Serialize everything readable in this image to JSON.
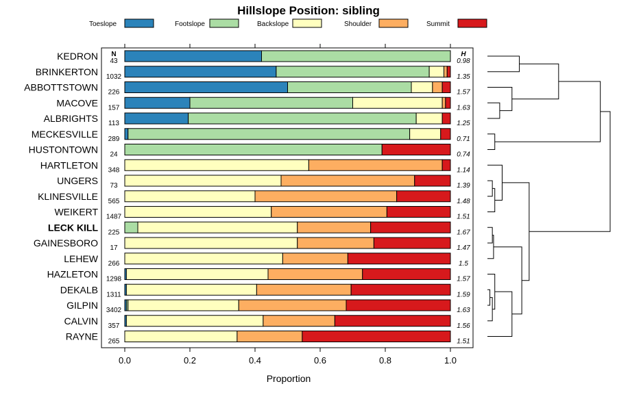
{
  "chart_data": {
    "type": "bar",
    "orientation": "horizontal",
    "stacked": true,
    "title": "Hillslope Position: sibling",
    "xlabel": "Proportion",
    "ylabel": "",
    "xlim": [
      0,
      1
    ],
    "xticks": [
      "0.0",
      "0.2",
      "0.4",
      "0.6",
      "0.8",
      "1.0"
    ],
    "legend_position": "top",
    "n_header": "N",
    "h_header": "H",
    "highlight": "LECK KILL",
    "series": [
      {
        "name": "Toeslope",
        "color": "#2b83ba"
      },
      {
        "name": "Footslope",
        "color": "#abdda4"
      },
      {
        "name": "Backslope",
        "color": "#ffffbf"
      },
      {
        "name": "Shoulder",
        "color": "#fdae61"
      },
      {
        "name": "Summit",
        "color": "#d7191c"
      }
    ],
    "rows": [
      {
        "name": "KEDRON",
        "n": "43",
        "h": "0.98",
        "values": [
          0.42,
          0.58,
          0.0,
          0.0,
          0.0
        ]
      },
      {
        "name": "BRINKERTON",
        "n": "1032",
        "h": "1.35",
        "values": [
          0.465,
          0.47,
          0.045,
          0.01,
          0.01
        ]
      },
      {
        "name": "ABBOTTSTOWN",
        "n": "226",
        "h": "1.57",
        "values": [
          0.5,
          0.38,
          0.065,
          0.03,
          0.025
        ]
      },
      {
        "name": "MACOVE",
        "n": "157",
        "h": "1.63",
        "values": [
          0.2,
          0.5,
          0.275,
          0.01,
          0.015
        ]
      },
      {
        "name": "ALBRIGHTS",
        "n": "113",
        "h": "1.25",
        "values": [
          0.195,
          0.7,
          0.08,
          0.0,
          0.025
        ]
      },
      {
        "name": "MECKESVILLE",
        "n": "289",
        "h": "0.71",
        "values": [
          0.01,
          0.865,
          0.095,
          0.0,
          0.03
        ]
      },
      {
        "name": "HUSTONTOWN",
        "n": "24",
        "h": "0.74",
        "values": [
          0.0,
          0.79,
          0.0,
          0.0,
          0.21
        ]
      },
      {
        "name": "HARTLETON",
        "n": "348",
        "h": "1.14",
        "values": [
          0.0,
          0.0,
          0.565,
          0.41,
          0.025
        ]
      },
      {
        "name": "UNGERS",
        "n": "73",
        "h": "1.39",
        "values": [
          0.0,
          0.0,
          0.48,
          0.41,
          0.11
        ]
      },
      {
        "name": "KLINESVILLE",
        "n": "565",
        "h": "1.48",
        "values": [
          0.0,
          0.0,
          0.4,
          0.435,
          0.165
        ]
      },
      {
        "name": "WEIKERT",
        "n": "1487",
        "h": "1.51",
        "values": [
          0.0,
          0.0,
          0.45,
          0.355,
          0.195
        ]
      },
      {
        "name": "LECK KILL",
        "n": "225",
        "h": "1.67",
        "values": [
          0.0,
          0.04,
          0.49,
          0.225,
          0.245
        ]
      },
      {
        "name": "GAINESBORO",
        "n": "17",
        "h": "1.47",
        "values": [
          0.0,
          0.0,
          0.53,
          0.235,
          0.235
        ]
      },
      {
        "name": "LEHEW",
        "n": "266",
        "h": "1.5",
        "values": [
          0.0,
          0.0,
          0.485,
          0.2,
          0.315
        ]
      },
      {
        "name": "HAZLETON",
        "n": "1298",
        "h": "1.57",
        "values": [
          0.005,
          0.0,
          0.435,
          0.29,
          0.27
        ]
      },
      {
        "name": "DEKALB",
        "n": "1311",
        "h": "1.59",
        "values": [
          0.005,
          0.0,
          0.4,
          0.29,
          0.305
        ]
      },
      {
        "name": "GILPIN",
        "n": "3402",
        "h": "1.63",
        "values": [
          0.005,
          0.005,
          0.34,
          0.33,
          0.32
        ]
      },
      {
        "name": "CALVIN",
        "n": "357",
        "h": "1.56",
        "values": [
          0.005,
          0.0,
          0.42,
          0.22,
          0.355
        ]
      },
      {
        "name": "RAYNE",
        "n": "265",
        "h": "1.51",
        "values": [
          0.0,
          0.0,
          0.345,
          0.2,
          0.455
        ]
      }
    ],
    "dendrogram": {
      "height_units": "arbitrary",
      "note": "hierarchical clustering of rows; merge heights in relative units (0 = leaves)",
      "merges": [
        {
          "id": "m1",
          "left": "KEDRON",
          "right": "BRINKERTON",
          "height": 0.26
        },
        {
          "id": "m2",
          "left": "MACOVE",
          "right": "ALBRIGHTS",
          "height": 0.1
        },
        {
          "id": "m3",
          "left": "ABBOTTSTOWN",
          "right": "m2",
          "height": 0.2
        },
        {
          "id": "m4",
          "left": "m1",
          "right": "m3",
          "height": 0.58
        },
        {
          "id": "m5",
          "left": "MECKESVILLE",
          "right": "HUSTONTOWN",
          "height": 0.06
        },
        {
          "id": "m6",
          "left": "m4",
          "right": "m5",
          "height": 0.92
        },
        {
          "id": "m7",
          "left": "UNGERS",
          "right": "KLINESVILLE",
          "height": 0.04
        },
        {
          "id": "m8",
          "left": "m7",
          "right": "WEIKERT",
          "height": 0.06
        },
        {
          "id": "m9",
          "left": "HARTLETON",
          "right": "m8",
          "height": 0.12
        },
        {
          "id": "m10",
          "left": "LECK KILL",
          "right": "GAINESBORO",
          "height": 0.04
        },
        {
          "id": "m11",
          "left": "m10",
          "right": "LEHEW",
          "height": 0.05
        },
        {
          "id": "m12",
          "left": "DEKALB",
          "right": "GILPIN",
          "height": 0.02
        },
        {
          "id": "m13",
          "left": "m12",
          "right": "CALVIN",
          "height": 0.04
        },
        {
          "id": "m14",
          "left": "HAZLETON",
          "right": "m13",
          "height": 0.06
        },
        {
          "id": "m15",
          "left": "m14",
          "right": "RAYNE",
          "height": 0.2
        },
        {
          "id": "m16",
          "left": "m11",
          "right": "m15",
          "height": 0.28
        },
        {
          "id": "m17",
          "left": "m9",
          "right": "m16",
          "height": 0.34
        },
        {
          "id": "m18",
          "left": "m6",
          "right": "m17",
          "height": 1.0
        }
      ]
    }
  }
}
